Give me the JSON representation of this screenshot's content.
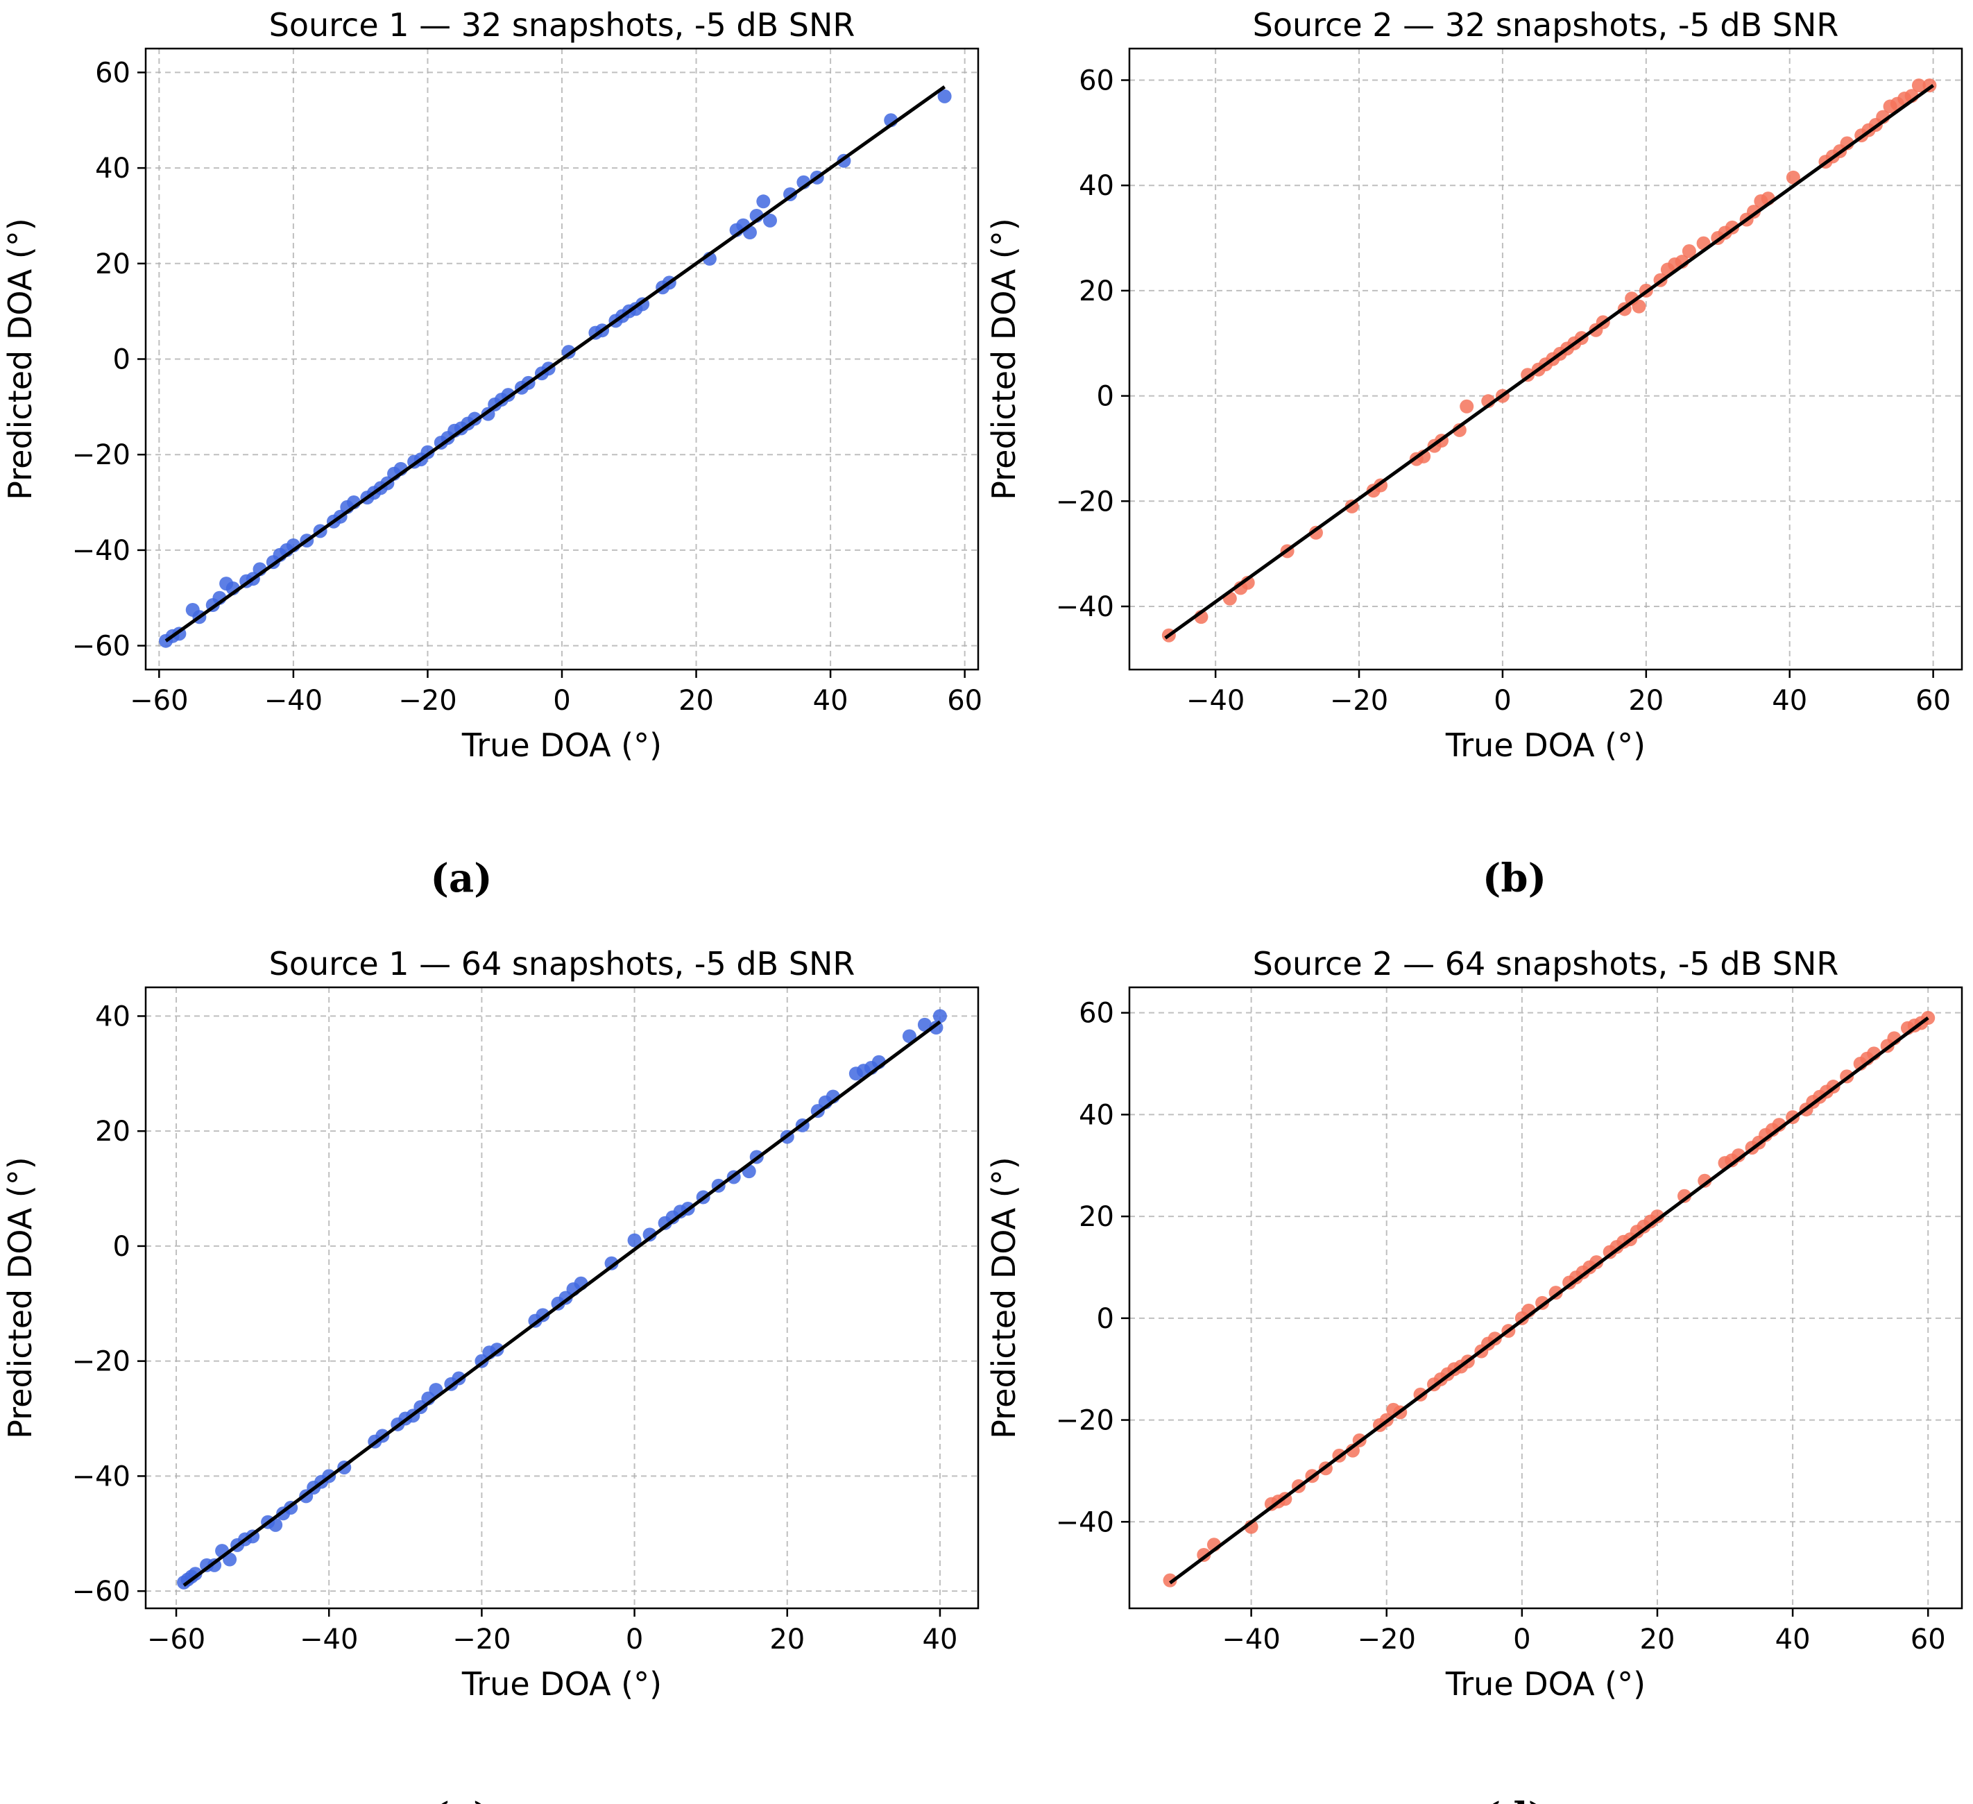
{
  "figure_labels": [
    "(a)",
    "(b)",
    "(c)",
    "(d)"
  ],
  "colors": {
    "source1": "#4169e1",
    "source2": "#f4735a",
    "fit": "#000000",
    "grid": "#b0b0b0"
  },
  "chart_data": [
    {
      "type": "scatter",
      "title": "Source 1 — 32 snapshots, -5 dB SNR",
      "xlabel": "True DOA (°)",
      "ylabel": "Predicted DOA (°)",
      "xlim": [
        -62,
        62
      ],
      "ylim": [
        -65,
        65
      ],
      "xticks": [
        -60,
        -40,
        -20,
        0,
        20,
        40,
        60
      ],
      "yticks": [
        -60,
        -40,
        -20,
        0,
        20,
        40,
        60
      ],
      "xtick_labels": [
        "−60",
        "−40",
        "−20",
        "0",
        "20",
        "40",
        "60"
      ],
      "ytick_labels": [
        "−60",
        "−40",
        "−20",
        "0",
        "20",
        "40",
        "60"
      ],
      "grid": true,
      "color": "#4169e1",
      "fit_line": {
        "x": [
          -59,
          57
        ],
        "y": [
          -59,
          57
        ]
      },
      "series": [
        {
          "name": "Source 1",
          "x": [
            -59,
            -58,
            -57,
            -55,
            -54,
            -52,
            -51,
            -50,
            -49,
            -47,
            -46,
            -45,
            -43,
            -42,
            -41,
            -40,
            -38,
            -36,
            -34,
            -33,
            -32,
            -31,
            -29,
            -28,
            -27,
            -26,
            -25,
            -24,
            -22,
            -21,
            -20,
            -18,
            -17,
            -16,
            -15,
            -14,
            -13,
            -11,
            -10,
            -9,
            -8,
            -6,
            -5,
            -3,
            -2,
            1,
            5,
            6,
            8,
            9,
            10,
            11,
            12,
            15,
            16,
            22,
            26,
            27,
            28,
            29,
            30,
            31,
            34,
            36,
            38,
            42,
            49,
            57
          ],
          "y": [
            -59,
            -58,
            -57.5,
            -52.5,
            -54,
            -51.5,
            -50,
            -47,
            -48,
            -46.5,
            -46,
            -44,
            -42.5,
            -41,
            -40,
            -39,
            -38,
            -36,
            -34,
            -33,
            -31,
            -30,
            -29,
            -28,
            -27,
            -26,
            -24,
            -23,
            -21.5,
            -21,
            -19.5,
            -17.5,
            -16.5,
            -15,
            -14.5,
            -13.5,
            -12.5,
            -11.5,
            -9.5,
            -8.5,
            -7.5,
            -6,
            -5,
            -3,
            -2,
            1.5,
            5.5,
            6,
            8,
            9,
            10,
            10.5,
            11.5,
            15,
            16,
            21,
            27,
            28,
            26.5,
            30,
            33,
            29,
            34.5,
            37,
            38,
            41.5,
            50,
            55
          ]
        }
      ]
    },
    {
      "type": "scatter",
      "title": "Source 2 — 32 snapshots, -5 dB SNR",
      "xlabel": "True DOA (°)",
      "ylabel": "Predicted DOA (°)",
      "xlim": [
        -52,
        64
      ],
      "ylim": [
        -52,
        66
      ],
      "xticks": [
        -40,
        -20,
        0,
        20,
        40,
        60
      ],
      "yticks": [
        -40,
        -20,
        0,
        20,
        40,
        60
      ],
      "xtick_labels": [
        "−40",
        "−20",
        "0",
        "20",
        "40",
        "60"
      ],
      "ytick_labels": [
        "−40",
        "−20",
        "0",
        "20",
        "40",
        "60"
      ],
      "grid": true,
      "color": "#f4735a",
      "fit_line": {
        "x": [
          -47,
          60
        ],
        "y": [
          -46,
          59
        ]
      },
      "series": [
        {
          "name": "Source 2",
          "x": [
            -46.5,
            -42,
            -38,
            -36.5,
            -35.5,
            -30,
            -26,
            -21,
            -18,
            -17,
            -12,
            -11,
            -9.5,
            -8.5,
            -6,
            -5,
            -2,
            0,
            3.5,
            5,
            6,
            7,
            8,
            9,
            10,
            11,
            13,
            14,
            17,
            18,
            19,
            20,
            22,
            23,
            24,
            25,
            26,
            28,
            30,
            31,
            32,
            34,
            35,
            36,
            37,
            40.5,
            45,
            46,
            47,
            48,
            50,
            51,
            52,
            53,
            54,
            55,
            56,
            57,
            58,
            59.5
          ],
          "y": [
            -45.5,
            -42,
            -38.5,
            -36.5,
            -35.5,
            -29.5,
            -26,
            -21,
            -18,
            -17,
            -12,
            -11.5,
            -9.5,
            -8.5,
            -6.5,
            -2,
            -1,
            0,
            4,
            5,
            6,
            7,
            8,
            9,
            10,
            11,
            12.5,
            14,
            16.5,
            18.5,
            17,
            20,
            22,
            24,
            25,
            25.5,
            27.5,
            29,
            30,
            31,
            32,
            33.5,
            35,
            37,
            37.5,
            41.5,
            44.5,
            45.5,
            46.5,
            48,
            49.5,
            50.5,
            51.5,
            53,
            55,
            55.5,
            56.5,
            57,
            59,
            59
          ]
        }
      ]
    },
    {
      "type": "scatter",
      "title": "Source 1 — 64 snapshots, -5 dB SNR",
      "xlabel": "True DOA (°)",
      "ylabel": "Predicted DOA (°)",
      "xlim": [
        -64,
        45
      ],
      "ylim": [
        -63,
        45
      ],
      "xticks": [
        -60,
        -40,
        -20,
        0,
        20,
        40
      ],
      "yticks": [
        -60,
        -40,
        -20,
        0,
        20,
        40
      ],
      "xtick_labels": [
        "−60",
        "−40",
        "−20",
        "0",
        "20",
        "40"
      ],
      "ytick_labels": [
        "−60",
        "−40",
        "−20",
        "0",
        "20",
        "40"
      ],
      "grid": true,
      "color": "#4169e1",
      "fit_line": {
        "x": [
          -59,
          40
        ],
        "y": [
          -59,
          39
        ]
      },
      "series": [
        {
          "name": "Source 1",
          "x": [
            -59,
            -58.5,
            -58,
            -57.5,
            -56,
            -55,
            -54,
            -53,
            -52,
            -51,
            -50,
            -48,
            -47,
            -46,
            -45,
            -43,
            -42,
            -41,
            -40,
            -38,
            -34,
            -33,
            -31,
            -30,
            -29,
            -28,
            -27,
            -26,
            -24,
            -23,
            -20,
            -19,
            -18,
            -13,
            -12,
            -10,
            -9,
            -8,
            -7,
            -3,
            0,
            2,
            4,
            5,
            6,
            7,
            9,
            11,
            13,
            15,
            16,
            20,
            22,
            24,
            25,
            26,
            29,
            30,
            31,
            32,
            36,
            38,
            39.5,
            40
          ],
          "y": [
            -58.5,
            -58,
            -57.5,
            -57,
            -55.5,
            -55.5,
            -53,
            -54.5,
            -52,
            -51,
            -50.5,
            -48,
            -48.5,
            -46.5,
            -45.5,
            -43.5,
            -42,
            -41,
            -40,
            -38.5,
            -34,
            -33,
            -31,
            -30,
            -29.5,
            -28,
            -26.5,
            -25,
            -24,
            -23,
            -20,
            -18.5,
            -18,
            -13,
            -12,
            -10,
            -9,
            -7.5,
            -6.5,
            -3,
            1,
            2,
            4,
            5,
            6,
            6.5,
            8.5,
            10.5,
            12,
            13,
            15.5,
            19,
            21,
            23.5,
            25,
            26,
            30,
            30.5,
            31,
            32,
            36.5,
            38.5,
            38,
            40
          ]
        }
      ]
    },
    {
      "type": "scatter",
      "title": "Source 2 — 64 snapshots, -5 dB SNR",
      "xlabel": "True DOA (°)",
      "ylabel": "Predicted DOA (°)",
      "xlim": [
        -58,
        65
      ],
      "ylim": [
        -57,
        65
      ],
      "xticks": [
        -40,
        -20,
        0,
        20,
        40,
        60
      ],
      "yticks": [
        -40,
        -20,
        0,
        20,
        40,
        60
      ],
      "xtick_labels": [
        "−40",
        "−20",
        "0",
        "20",
        "40",
        "60"
      ],
      "ytick_labels": [
        "−40",
        "−20",
        "0",
        "20",
        "40",
        "60"
      ],
      "grid": true,
      "color": "#f4735a",
      "fit_line": {
        "x": [
          -52,
          60
        ],
        "y": [
          -52,
          59
        ]
      },
      "series": [
        {
          "name": "Source 2",
          "x": [
            -52,
            -47,
            -45.5,
            -40,
            -37,
            -36,
            -35,
            -33,
            -31,
            -29,
            -27,
            -25,
            -24,
            -21,
            -20,
            -19,
            -18,
            -15,
            -13,
            -12,
            -11,
            -10,
            -9,
            -8,
            -6,
            -5,
            -4,
            -2,
            0,
            1,
            3,
            5,
            7,
            8,
            9,
            10,
            11,
            13,
            14,
            15,
            16,
            17,
            18,
            19,
            20,
            24,
            27,
            30,
            31,
            32,
            34,
            35,
            36,
            37,
            38,
            40,
            42,
            43,
            44,
            45,
            46,
            48,
            50,
            51,
            52,
            54,
            55,
            57,
            58,
            59,
            60
          ],
          "y": [
            -51.5,
            -46.5,
            -44.5,
            -41,
            -36.5,
            -36,
            -35.5,
            -33,
            -31,
            -29.5,
            -27,
            -26,
            -24,
            -21,
            -20,
            -18,
            -18.5,
            -15,
            -13,
            -12,
            -11,
            -10,
            -9.5,
            -8.5,
            -6.5,
            -5,
            -4,
            -2.5,
            0,
            1.5,
            3,
            5,
            7,
            8,
            9,
            10,
            11,
            13,
            14,
            15,
            15.5,
            17,
            18,
            19,
            20,
            24,
            27,
            30.5,
            31,
            32,
            33.5,
            34.5,
            36,
            37,
            38,
            39.5,
            41,
            42.5,
            43.5,
            44.5,
            45.5,
            47.5,
            50,
            51,
            52,
            53.5,
            55,
            57,
            57.5,
            58,
            59
          ]
        }
      ]
    }
  ]
}
